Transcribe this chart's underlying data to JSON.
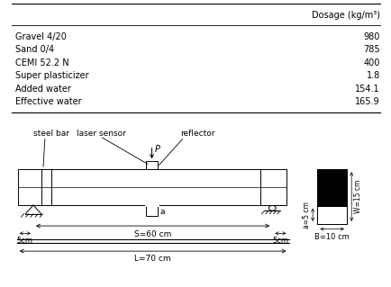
{
  "table_header_col": "Dosage (kg/m³)",
  "table_rows": [
    [
      "Gravel 4/20",
      "980"
    ],
    [
      "Sand 0/4",
      "785"
    ],
    [
      "CEMI 52.2 N",
      "400"
    ],
    [
      "Super plasticizer",
      "1.8"
    ],
    [
      "Added water",
      "154.1"
    ],
    [
      "Effective water",
      "165.9"
    ]
  ],
  "bg_color": "#ffffff",
  "text_color": "#000000",
  "line_color": "#000000",
  "font_size_table": 7.0,
  "font_size_diagram": 6.5
}
